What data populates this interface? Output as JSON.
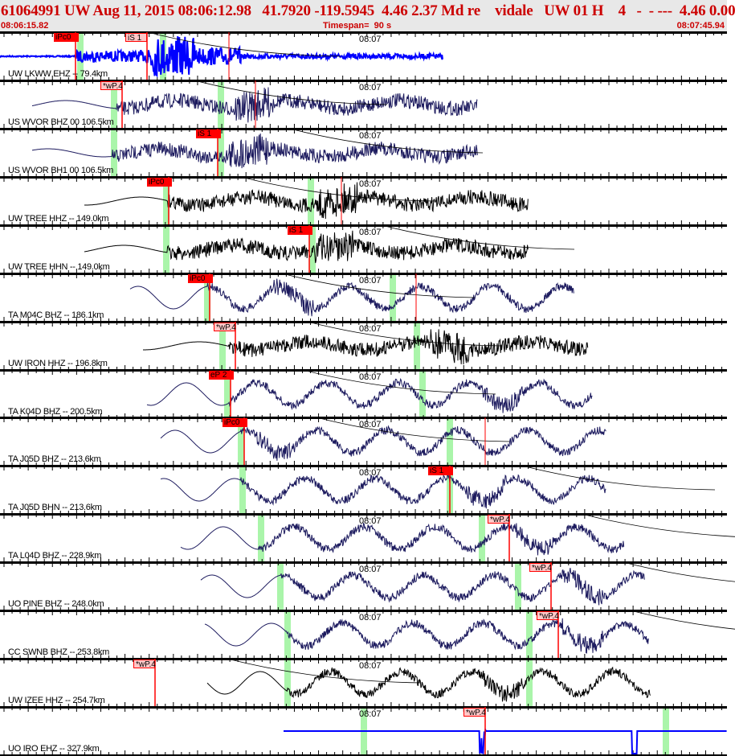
{
  "header": {
    "title": "61064991 UW Aug 11, 2015 08:06:12.98   41.7920 -119.5945  4.46 2.37 Md re    vidale   UW 01 H    4   -  - ---  4.46 0.00",
    "start_time": "08:06:15.82",
    "timespan": "Timespan=  90 s",
    "end_time": "08:07:45.94"
  },
  "colors": {
    "header_text": "#cc0000",
    "header_bg": "#e8e8e8",
    "pick": "#ff0000",
    "pick_soft": "#ffc8c8",
    "window": "#aaf5aa",
    "blue": "#0000ff",
    "navy": "#1c1a5e",
    "black": "#000000"
  },
  "time_label": "08:07",
  "traces": [
    {
      "label": "UW LKWW EHZ -- 79.4km",
      "color": "blue",
      "picks": [
        "iPc0",
        "iS 1"
      ]
    },
    {
      "label": "US WVOR BHZ 00 106.5km",
      "color": "navy",
      "picks": [
        "*wP.4"
      ]
    },
    {
      "label": "US WVOR BH1 00 106.5km",
      "color": "navy",
      "picks": [
        "iS 1"
      ]
    },
    {
      "label": "UW TREE HHZ -- 149.0km",
      "color": "black",
      "picks": [
        "iPc0"
      ]
    },
    {
      "label": "UW TREE HHN -- 149.0km",
      "color": "black",
      "picks": [
        "iS 1"
      ]
    },
    {
      "label": "TA M04C BHZ -- 186.1km",
      "color": "navy",
      "picks": [
        "iPc0"
      ]
    },
    {
      "label": "UW IRON HHZ -- 196.8km",
      "color": "black",
      "picks": [
        "*wP.4"
      ]
    },
    {
      "label": "TA K04D BHZ -- 200.5km",
      "color": "navy",
      "picks": [
        "eP 2"
      ]
    },
    {
      "label": "TA J05D BHZ -- 213.6km",
      "color": "navy",
      "picks": [
        "iPc0"
      ]
    },
    {
      "label": "TA J05D BHN -- 213.6km",
      "color": "navy",
      "picks": [
        "iS 1"
      ]
    },
    {
      "label": "TA L04D BHZ -- 228.9km",
      "color": "navy",
      "picks": [
        "*wP.4"
      ]
    },
    {
      "label": "UO PINE BHZ -- 248.0km",
      "color": "navy",
      "picks": [
        "*wP.4"
      ]
    },
    {
      "label": "CC SWNB BHZ -- 253.8km",
      "color": "navy",
      "picks": [
        "*wP.4"
      ]
    },
    {
      "label": "UW IZEE HHZ -- 254.7km",
      "color": "black",
      "picks": [
        "*wP.4"
      ]
    },
    {
      "label": "UO IRO EHZ -- 327.9km",
      "color": "blue",
      "picks": [
        "*wP.4"
      ]
    }
  ]
}
